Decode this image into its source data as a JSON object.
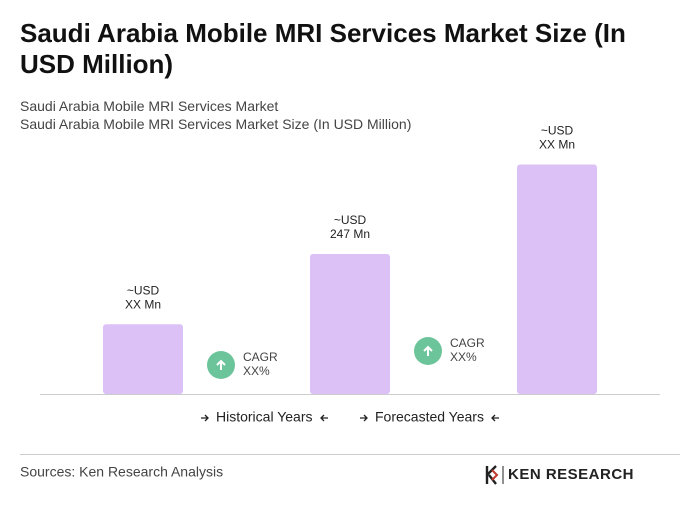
{
  "chart_data": {
    "type": "bar",
    "title": "Saudi Arabia Mobile MRI Services Market Size (In USD Million)",
    "subtitle": [
      "Saudi Arabia Mobile MRI Services Market",
      "Saudi Arabia Mobile MRI Services Market Size (In USD Million)"
    ],
    "categories": [
      null,
      null,
      null
    ],
    "values": [
      123,
      247,
      405
    ],
    "value_labels": [
      [
        "~USD",
        "XX Mn"
      ],
      [
        "~USD",
        "247 Mn"
      ],
      [
        "~USD",
        "XX Mn"
      ]
    ],
    "color": "#dcc1f7",
    "ylim": [
      0,
      450
    ],
    "annotations": [
      [
        "CAGR",
        "XX%"
      ],
      [
        "CAGR",
        "XX%"
      ]
    ],
    "periods": [
      "Historical Years",
      "Forecasted Years"
    ],
    "source": "Sources: Ken Research Analysis",
    "logo": "KEN RESEARCH"
  }
}
